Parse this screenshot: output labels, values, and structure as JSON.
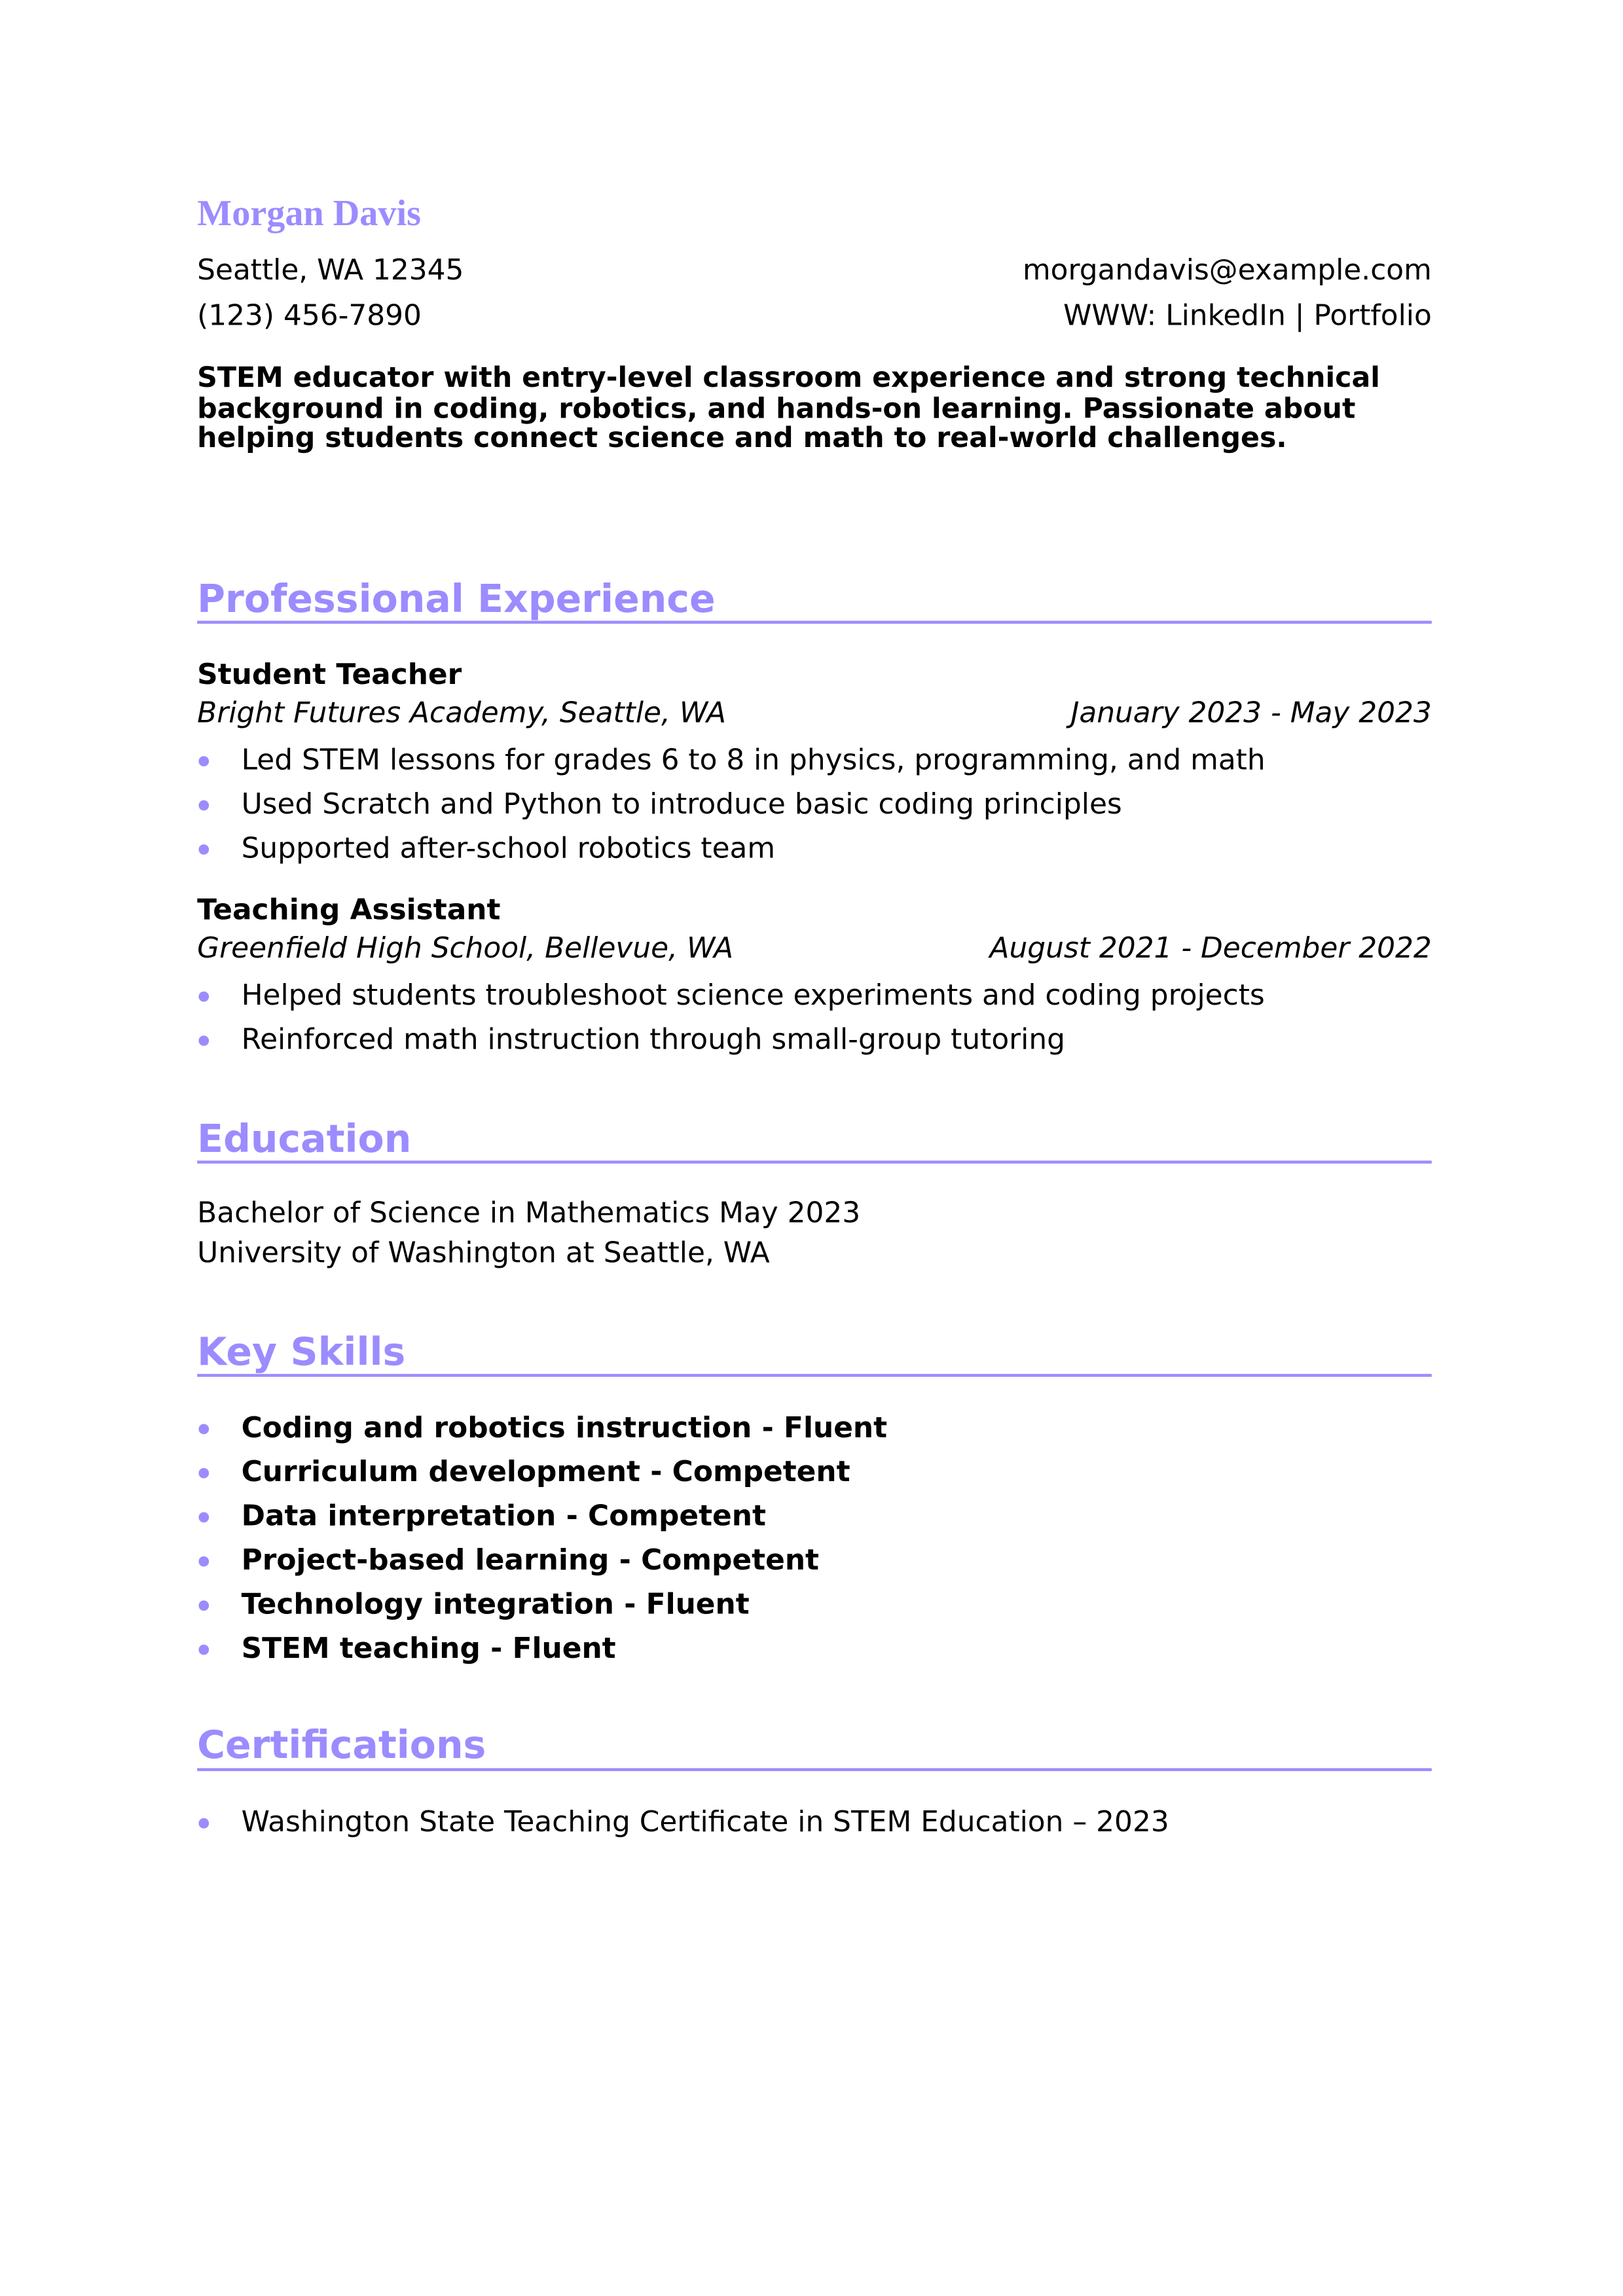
{
  "header": {
    "name": "Morgan Davis",
    "location": "Seattle, WA 12345",
    "phone": "(123) 456-7890",
    "email": "morgandavis@example.com",
    "web": "WWW: LinkedIn | Portfolio"
  },
  "summary": "STEM educator with entry-level classroom experience and strong technical background in coding, robotics, and hands-on learning. Passionate about helping students connect science and math to real-world challenges.",
  "experience": {
    "heading": "Professional Experience",
    "jobs": [
      {
        "title": "Student Teacher",
        "org": "Bright Futures Academy, Seattle, WA",
        "dates": "January 2023 - May 2023",
        "bullets": [
          "Led STEM lessons for grades 6 to 8 in physics, programming, and math",
          "Used Scratch and Python to introduce basic coding principles",
          "Supported after-school robotics team"
        ]
      },
      {
        "title": "Teaching Assistant",
        "org": "Greenfield High School, Bellevue, WA",
        "dates": "August 2021 - December 2022",
        "bullets": [
          "Helped students troubleshoot science experiments and coding projects",
          "Reinforced math instruction through small-group tutoring"
        ]
      }
    ]
  },
  "education": {
    "heading": "Education",
    "degree": "Bachelor of Science in Mathematics May 2023",
    "school": "University of Washington at Seattle, WA"
  },
  "skills": {
    "heading": "Key Skills",
    "items": [
      "Coding and robotics instruction - Fluent",
      "Curriculum development - Competent",
      "Data interpretation - Competent",
      "Project-based learning - Competent",
      "Technology integration - Fluent",
      "STEM teaching - Fluent"
    ]
  },
  "certifications": {
    "heading": "Certifications",
    "items": [
      "Washington State Teaching Certificate in STEM Education – 2023"
    ]
  },
  "colors": {
    "accent": "#9b8cff",
    "text": "#000000"
  }
}
